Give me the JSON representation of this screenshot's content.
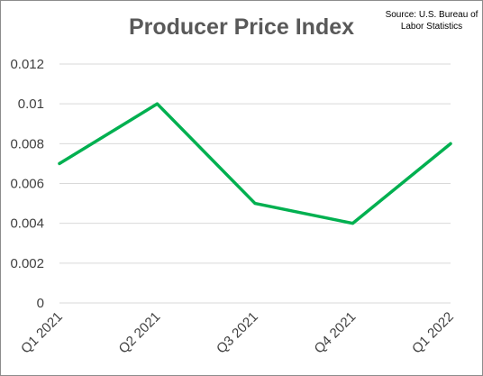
{
  "chart_data": {
    "type": "line",
    "title": "Producer Price Index",
    "annotation": "Source: U.S. Bureau of Labor Statistics",
    "categories": [
      "Q1 2021",
      "Q2 2021",
      "Q3 2021",
      "Q4 2021",
      "Q1 2022"
    ],
    "series": [
      {
        "values": [
          0.007,
          0.01,
          0.005,
          0.004,
          0.008
        ],
        "color": "#00b050"
      }
    ],
    "ylim": [
      0,
      0.012
    ],
    "yticks": [
      "0",
      "0.002",
      "0.004",
      "0.006",
      "0.008",
      "0.01",
      "0.012"
    ],
    "grid": true,
    "legend": "none",
    "colors": {
      "gridline": "#d9d9d9",
      "axis_text": "#404040",
      "title": "#595959"
    }
  }
}
